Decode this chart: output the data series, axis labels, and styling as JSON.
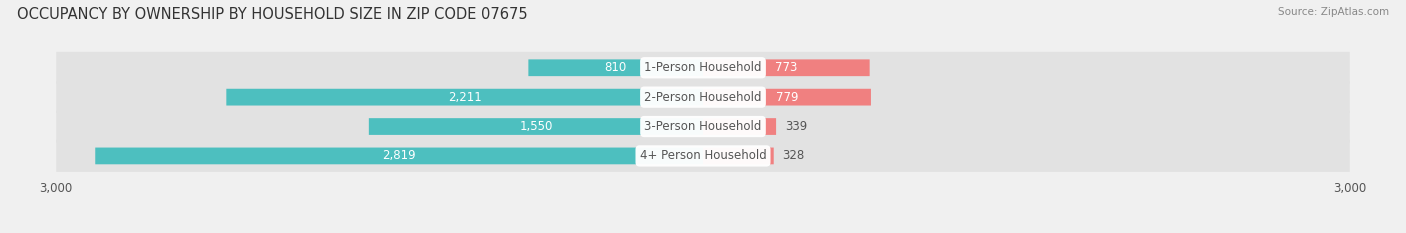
{
  "title": "OCCUPANCY BY OWNERSHIP BY HOUSEHOLD SIZE IN ZIP CODE 07675",
  "source": "Source: ZipAtlas.com",
  "categories": [
    "1-Person Household",
    "2-Person Household",
    "3-Person Household",
    "4+ Person Household"
  ],
  "owner_values": [
    810,
    2211,
    1550,
    2819
  ],
  "renter_values": [
    773,
    779,
    339,
    328
  ],
  "owner_color": "#4DBFBF",
  "renter_color": "#F08080",
  "background_color": "#f0f0f0",
  "bar_background_color": "#e2e2e2",
  "xlim": 3000,
  "bar_height": 0.55,
  "label_fontsize": 8.5,
  "title_fontsize": 10.5,
  "tick_fontsize": 8.5,
  "legend_fontsize": 8.5
}
